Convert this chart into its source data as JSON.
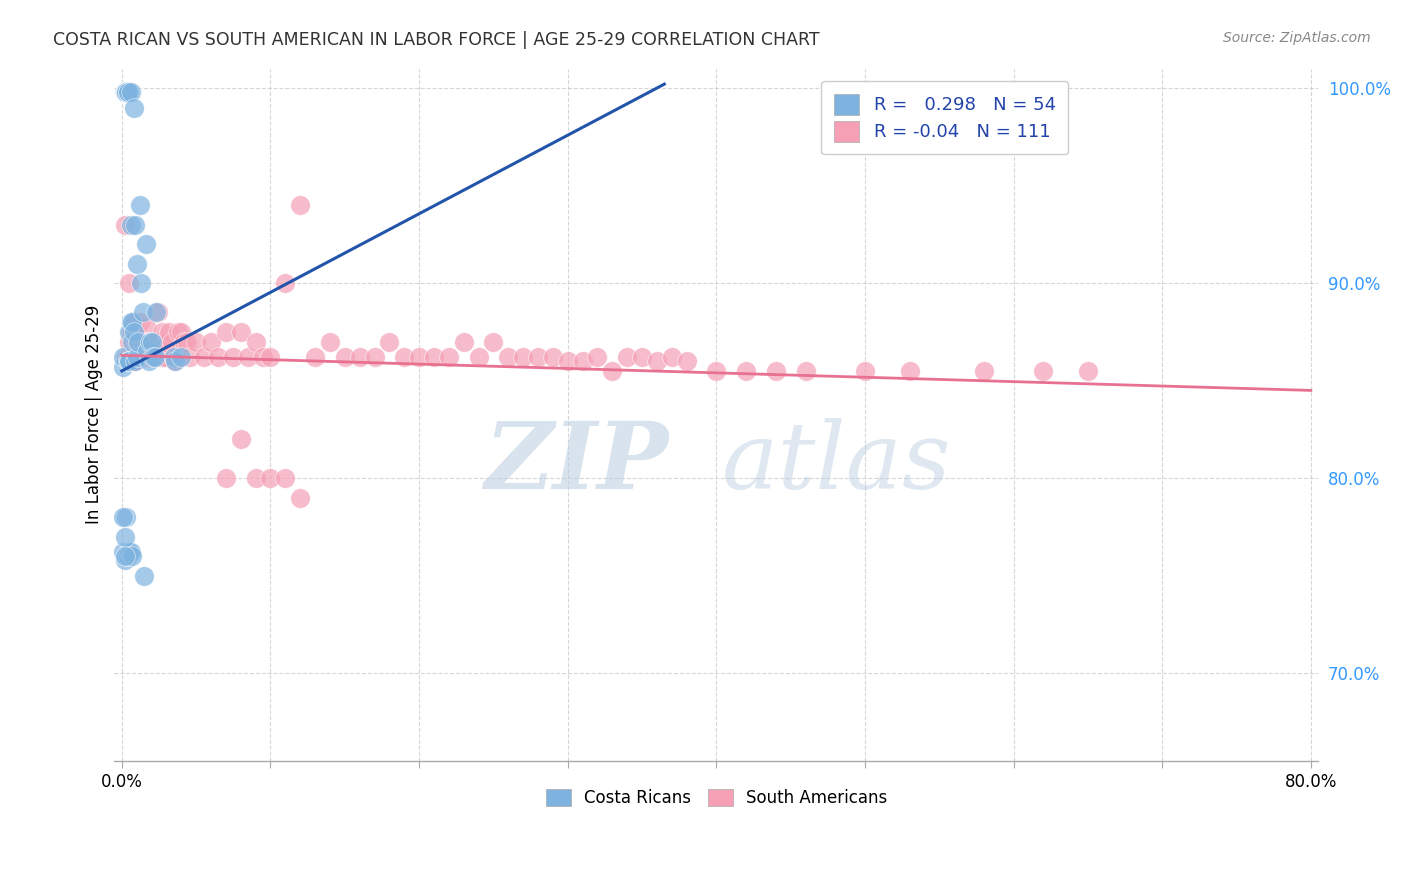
{
  "title": "COSTA RICAN VS SOUTH AMERICAN IN LABOR FORCE | AGE 25-29 CORRELATION CHART",
  "source": "Source: ZipAtlas.com",
  "ylabel": "In Labor Force | Age 25-29",
  "xlim": [
    -0.005,
    0.805
  ],
  "ylim": [
    0.655,
    1.01
  ],
  "xticks": [
    0.0,
    0.1,
    0.2,
    0.3,
    0.4,
    0.5,
    0.6,
    0.7,
    0.8
  ],
  "xticklabels": [
    "0.0%",
    "",
    "",
    "",
    "",
    "",
    "",
    "",
    "80.0%"
  ],
  "yticks": [
    0.7,
    0.8,
    0.9,
    1.0
  ],
  "yticklabels": [
    "70.0%",
    "80.0%",
    "90.0%",
    "100.0%"
  ],
  "blue_R": 0.298,
  "blue_N": 54,
  "pink_R": -0.04,
  "pink_N": 111,
  "blue_color": "#7EB3E0",
  "pink_color": "#F5A0B5",
  "blue_line_color": "#2255AA",
  "pink_line_color": "#E87090",
  "legend_labels": [
    "Costa Ricans",
    "South Americans"
  ],
  "blue_line_x0": 0.0,
  "blue_line_y0": 0.855,
  "blue_line_x1": 0.365,
  "blue_line_y1": 1.002,
  "pink_line_x0": 0.0,
  "pink_line_y0": 0.863,
  "pink_line_x1": 0.8,
  "pink_line_y1": 0.845,
  "blue_x": [
    0.001,
    0.001,
    0.002,
    0.002,
    0.002,
    0.003,
    0.003,
    0.003,
    0.003,
    0.003,
    0.004,
    0.004,
    0.004,
    0.005,
    0.005,
    0.005,
    0.006,
    0.006,
    0.006,
    0.007,
    0.007,
    0.008,
    0.008,
    0.009,
    0.009,
    0.01,
    0.01,
    0.011,
    0.012,
    0.013,
    0.014,
    0.015,
    0.016,
    0.017,
    0.018,
    0.019,
    0.02,
    0.021,
    0.022,
    0.023,
    0.001,
    0.002,
    0.003,
    0.003,
    0.004,
    0.005,
    0.006,
    0.007,
    0.035,
    0.036,
    0.001,
    0.002,
    0.002,
    0.04
  ],
  "blue_y": [
    0.857,
    0.862,
    0.998,
    0.998,
    0.998,
    0.998,
    0.998,
    0.998,
    0.998,
    0.998,
    0.86,
    0.998,
    0.998,
    0.875,
    0.86,
    0.86,
    0.88,
    0.998,
    0.93,
    0.87,
    0.88,
    0.875,
    0.99,
    0.93,
    0.86,
    0.91,
    0.862,
    0.87,
    0.94,
    0.9,
    0.885,
    0.75,
    0.92,
    0.865,
    0.86,
    0.87,
    0.87,
    0.862,
    0.862,
    0.885,
    0.762,
    0.758,
    0.76,
    0.78,
    0.76,
    0.762,
    0.762,
    0.76,
    0.862,
    0.86,
    0.78,
    0.77,
    0.76,
    0.862
  ],
  "pink_x": [
    0.002,
    0.003,
    0.003,
    0.004,
    0.004,
    0.005,
    0.005,
    0.005,
    0.006,
    0.006,
    0.006,
    0.007,
    0.007,
    0.007,
    0.008,
    0.008,
    0.008,
    0.009,
    0.009,
    0.01,
    0.01,
    0.011,
    0.011,
    0.012,
    0.012,
    0.013,
    0.013,
    0.014,
    0.014,
    0.015,
    0.015,
    0.016,
    0.016,
    0.017,
    0.017,
    0.018,
    0.018,
    0.019,
    0.02,
    0.021,
    0.022,
    0.023,
    0.024,
    0.025,
    0.026,
    0.027,
    0.028,
    0.029,
    0.03,
    0.032,
    0.034,
    0.036,
    0.038,
    0.04,
    0.042,
    0.044,
    0.046,
    0.05,
    0.055,
    0.06,
    0.065,
    0.07,
    0.075,
    0.08,
    0.085,
    0.09,
    0.095,
    0.1,
    0.11,
    0.12,
    0.13,
    0.14,
    0.15,
    0.16,
    0.17,
    0.18,
    0.19,
    0.2,
    0.21,
    0.22,
    0.23,
    0.24,
    0.25,
    0.26,
    0.27,
    0.28,
    0.29,
    0.3,
    0.31,
    0.32,
    0.33,
    0.34,
    0.35,
    0.36,
    0.37,
    0.38,
    0.4,
    0.42,
    0.44,
    0.46,
    0.5,
    0.53,
    0.58,
    0.62,
    0.65,
    0.07,
    0.08,
    0.09,
    0.1,
    0.11,
    0.12
  ],
  "pink_y": [
    0.93,
    0.862,
    0.862,
    0.862,
    0.862,
    0.9,
    0.87,
    0.86,
    0.875,
    0.862,
    0.862,
    0.875,
    0.86,
    0.86,
    0.875,
    0.862,
    0.86,
    0.88,
    0.86,
    0.87,
    0.862,
    0.87,
    0.862,
    0.88,
    0.862,
    0.87,
    0.862,
    0.87,
    0.862,
    0.87,
    0.862,
    0.878,
    0.862,
    0.87,
    0.862,
    0.87,
    0.862,
    0.87,
    0.87,
    0.865,
    0.87,
    0.862,
    0.885,
    0.87,
    0.862,
    0.875,
    0.862,
    0.862,
    0.87,
    0.875,
    0.87,
    0.86,
    0.875,
    0.875,
    0.87,
    0.87,
    0.862,
    0.87,
    0.862,
    0.87,
    0.862,
    0.875,
    0.862,
    0.875,
    0.862,
    0.87,
    0.862,
    0.862,
    0.9,
    0.94,
    0.862,
    0.87,
    0.862,
    0.862,
    0.862,
    0.87,
    0.862,
    0.862,
    0.862,
    0.862,
    0.87,
    0.862,
    0.87,
    0.862,
    0.862,
    0.862,
    0.862,
    0.86,
    0.86,
    0.862,
    0.855,
    0.862,
    0.862,
    0.86,
    0.862,
    0.86,
    0.855,
    0.855,
    0.855,
    0.855,
    0.855,
    0.855,
    0.855,
    0.855,
    0.855,
    0.8,
    0.82,
    0.8,
    0.8,
    0.8,
    0.79
  ]
}
